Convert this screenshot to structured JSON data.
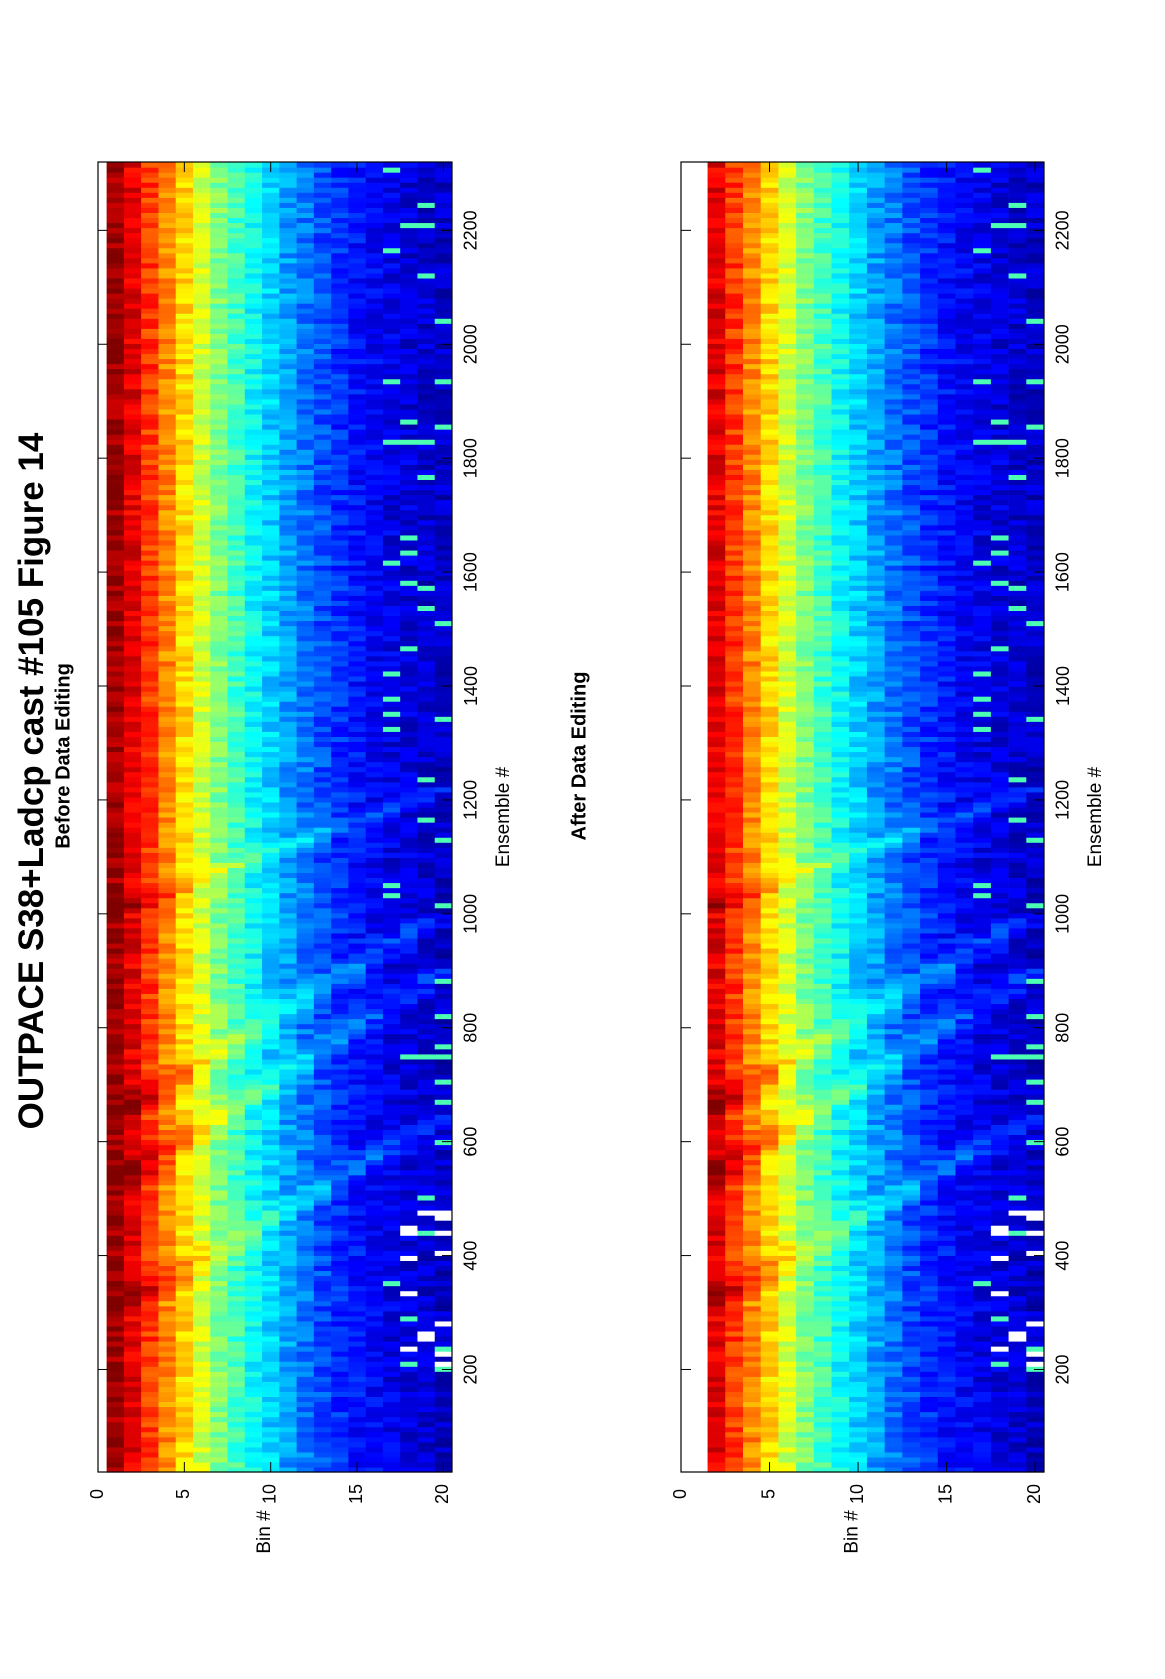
{
  "figure": {
    "title": "OUTPACE S38+Ladcp cast #105  Figure 14"
  },
  "colors": {
    "colormap": "jet",
    "missing_data": "#ffffff",
    "axes": "#000000"
  },
  "chart_data": [
    {
      "type": "heatmap",
      "title": "Before Data Editing",
      "xlabel": "Ensemble #",
      "ylabel": "Bin #",
      "xlim": [
        20,
        2320
      ],
      "ylim": [
        0,
        20.5
      ],
      "x_ticks": [
        200,
        400,
        600,
        800,
        1000,
        1200,
        1400,
        1600,
        1800,
        2000,
        2200
      ],
      "y_ticks": [
        0,
        5,
        10,
        15,
        20
      ],
      "bins": [
        1,
        20
      ],
      "value_scale": "relative echo amplitude 0-1 (jet colormap, no colorbar shown)",
      "bin1_present": true,
      "profile_by_bin_mean": [
        0.97,
        0.9,
        0.82,
        0.74,
        0.66,
        0.58,
        0.5,
        0.44,
        0.38,
        0.33,
        0.28,
        0.24,
        0.2,
        0.17,
        0.14,
        0.12,
        0.1,
        0.09,
        0.08,
        0.07
      ],
      "notes": "Vertical streak structure at ensembles ~300, ~640, ~1000 and ~1120; white gaps (missing data) in bins 18-20 near ensembles 200-480"
    },
    {
      "type": "heatmap",
      "title": "After Data Editing",
      "xlabel": "Ensemble #",
      "ylabel": "Bin #",
      "xlim": [
        20,
        2320
      ],
      "ylim": [
        0,
        20.5
      ],
      "x_ticks": [
        200,
        400,
        600,
        800,
        1000,
        1200,
        1400,
        1600,
        1800,
        2000,
        2200
      ],
      "y_ticks": [
        0,
        5,
        10,
        15,
        20
      ],
      "bins": [
        1,
        20
      ],
      "value_scale": "relative echo amplitude 0-1 (jet colormap, no colorbar shown)",
      "bin1_present": false,
      "profile_by_bin_mean": [
        null,
        0.9,
        0.82,
        0.74,
        0.66,
        0.58,
        0.5,
        0.44,
        0.38,
        0.33,
        0.28,
        0.24,
        0.2,
        0.17,
        0.14,
        0.12,
        0.1,
        0.09,
        0.08,
        0.07
      ],
      "notes": "Same field as before editing with bin 1 removed (white)"
    }
  ]
}
